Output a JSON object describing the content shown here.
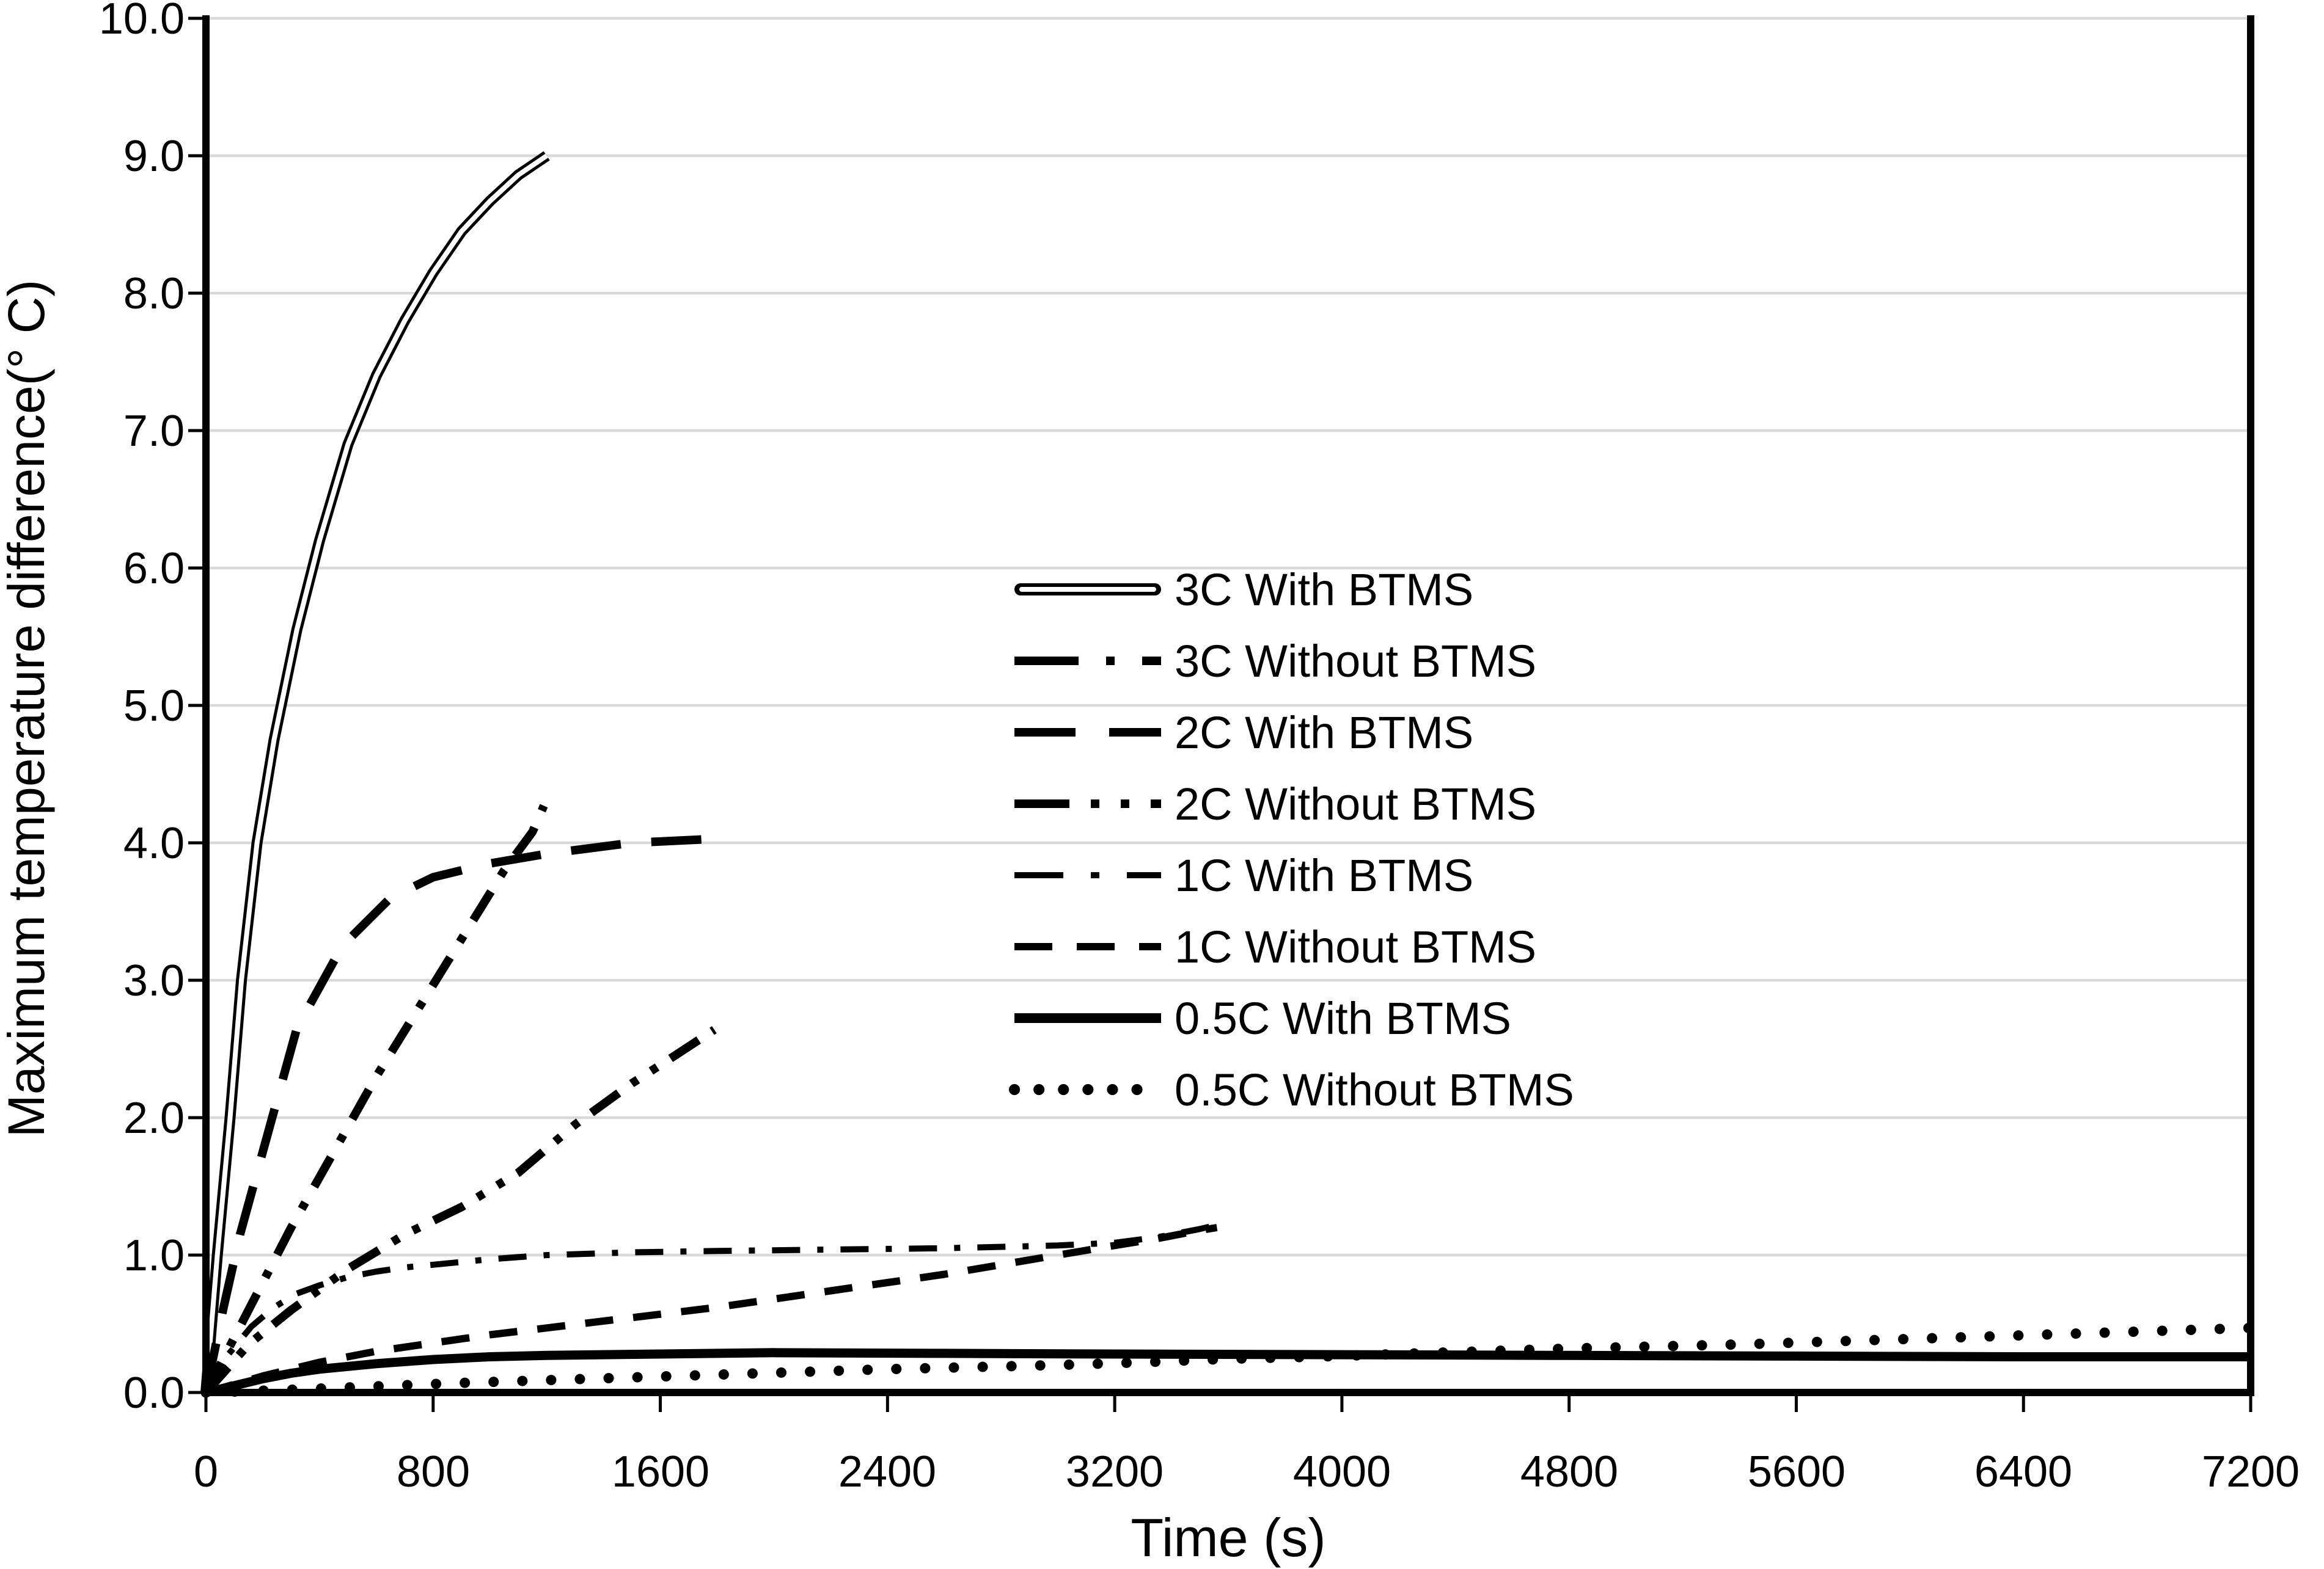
{
  "colors": {
    "line": "#000000",
    "grid": "#d9d9d9",
    "background": "#ffffff"
  },
  "chart_data": {
    "type": "line",
    "title": "",
    "xlabel": "Time (s)",
    "ylabel": "Maximum  temperature difference(° C)",
    "xlim": [
      0,
      7200
    ],
    "ylim": [
      0,
      10
    ],
    "grid": "horizontal gridlines only",
    "legend_position": "inside plot, center-right, no border",
    "x_ticks": [
      0,
      800,
      1600,
      2400,
      3200,
      4000,
      4800,
      5600,
      6400,
      7200
    ],
    "x_tick_labels": [
      "0",
      "800",
      "1600",
      "2400",
      "3200",
      "4000",
      "4800",
      "5600",
      "6400",
      "7200"
    ],
    "y_tick_labels": [
      "0.0",
      "1.0",
      "2.0",
      "3.0",
      "4.0",
      "5.0",
      "6.0",
      "7.0",
      "8.0",
      "9.0",
      "10.0"
    ],
    "series": [
      {
        "id": "3c-with-btms",
        "name": "3C With BTMS",
        "line_style": "double-solid",
        "points": [
          [
            0,
            0
          ],
          [
            40,
            1.0
          ],
          [
            85,
            2.0
          ],
          [
            125,
            3.0
          ],
          [
            180,
            4.0
          ],
          [
            240,
            4.75
          ],
          [
            320,
            5.55
          ],
          [
            400,
            6.2
          ],
          [
            500,
            6.9
          ],
          [
            600,
            7.4
          ],
          [
            700,
            7.8
          ],
          [
            800,
            8.15
          ],
          [
            900,
            8.45
          ],
          [
            1000,
            8.67
          ],
          [
            1100,
            8.86
          ],
          [
            1200,
            9.0
          ]
        ]
      },
      {
        "id": "3c-without-btms",
        "name": "3C Without BTMS",
        "line_style": "dash-dot-bold",
        "points": [
          [
            0,
            0
          ],
          [
            150,
            0.6
          ],
          [
            300,
            1.2
          ],
          [
            450,
            1.75
          ],
          [
            600,
            2.3
          ],
          [
            750,
            2.8
          ],
          [
            900,
            3.3
          ],
          [
            1050,
            3.8
          ],
          [
            1150,
            4.08
          ],
          [
            1190,
            4.27
          ]
        ]
      },
      {
        "id": "2c-with-btms",
        "name": "2C With BTMS",
        "line_style": "long-dash",
        "points": [
          [
            0,
            0
          ],
          [
            60,
            0.6
          ],
          [
            120,
            1.15
          ],
          [
            200,
            1.75
          ],
          [
            320,
            2.65
          ],
          [
            480,
            3.25
          ],
          [
            650,
            3.6
          ],
          [
            800,
            3.75
          ],
          [
            1000,
            3.85
          ],
          [
            1200,
            3.92
          ],
          [
            1500,
            4.0
          ],
          [
            1800,
            4.03
          ]
        ]
      },
      {
        "id": "2c-without-btms",
        "name": "2C Without BTMS",
        "line_style": "dash-dot-dot",
        "points": [
          [
            0,
            0
          ],
          [
            150,
            0.35
          ],
          [
            300,
            0.6
          ],
          [
            500,
            0.9
          ],
          [
            700,
            1.15
          ],
          [
            900,
            1.35
          ],
          [
            1100,
            1.6
          ],
          [
            1300,
            1.95
          ],
          [
            1500,
            2.25
          ],
          [
            1650,
            2.45
          ],
          [
            1790,
            2.64
          ]
        ]
      },
      {
        "id": "1c-with-btms",
        "name": "1C With BTMS",
        "line_style": "dash-dot",
        "points": [
          [
            0,
            0
          ],
          [
            80,
            0.28
          ],
          [
            160,
            0.48
          ],
          [
            240,
            0.62
          ],
          [
            320,
            0.72
          ],
          [
            400,
            0.78
          ],
          [
            500,
            0.84
          ],
          [
            600,
            0.88
          ],
          [
            700,
            0.91
          ],
          [
            800,
            0.93
          ],
          [
            1000,
            0.97
          ],
          [
            1200,
            1.0
          ],
          [
            1500,
            1.02
          ],
          [
            1800,
            1.03
          ],
          [
            2200,
            1.04
          ],
          [
            2600,
            1.05
          ],
          [
            3000,
            1.07
          ],
          [
            3200,
            1.09
          ],
          [
            3350,
            1.13
          ],
          [
            3500,
            1.19
          ],
          [
            3560,
            1.22
          ]
        ]
      },
      {
        "id": "1c-without-btms",
        "name": "1C Without BTMS",
        "line_style": "dash",
        "points": [
          [
            0,
            0
          ],
          [
            200,
            0.12
          ],
          [
            400,
            0.22
          ],
          [
            600,
            0.3
          ],
          [
            800,
            0.36
          ],
          [
            1000,
            0.42
          ],
          [
            1200,
            0.47
          ],
          [
            1400,
            0.52
          ],
          [
            1600,
            0.57
          ],
          [
            1800,
            0.62
          ],
          [
            2000,
            0.68
          ],
          [
            2200,
            0.74
          ],
          [
            2400,
            0.8
          ],
          [
            2600,
            0.86
          ],
          [
            2800,
            0.93
          ],
          [
            3000,
            1.0
          ],
          [
            3200,
            1.07
          ],
          [
            3350,
            1.12
          ],
          [
            3500,
            1.18
          ],
          [
            3560,
            1.2
          ]
        ]
      },
      {
        "id": "05c-with-btms",
        "name": "0.5C With BTMS",
        "line_style": "solid-bold",
        "points": [
          [
            0,
            0
          ],
          [
            100,
            0.05
          ],
          [
            200,
            0.1
          ],
          [
            300,
            0.14
          ],
          [
            400,
            0.17
          ],
          [
            500,
            0.19
          ],
          [
            600,
            0.21
          ],
          [
            800,
            0.24
          ],
          [
            1000,
            0.26
          ],
          [
            1200,
            0.27
          ],
          [
            1600,
            0.28
          ],
          [
            2000,
            0.29
          ],
          [
            2600,
            0.285
          ],
          [
            3200,
            0.28
          ],
          [
            4000,
            0.275
          ],
          [
            4800,
            0.27
          ],
          [
            5600,
            0.265
          ],
          [
            6400,
            0.26
          ],
          [
            7200,
            0.26
          ]
        ]
      },
      {
        "id": "05c-without-btms",
        "name": "0.5C Without BTMS",
        "line_style": "dotted",
        "points": [
          [
            0,
            0
          ],
          [
            300,
            0.02
          ],
          [
            600,
            0.045
          ],
          [
            900,
            0.07
          ],
          [
            1200,
            0.09
          ],
          [
            1500,
            0.11
          ],
          [
            1800,
            0.13
          ],
          [
            2100,
            0.15
          ],
          [
            2400,
            0.17
          ],
          [
            2700,
            0.185
          ],
          [
            3000,
            0.2
          ],
          [
            3300,
            0.22
          ],
          [
            3600,
            0.245
          ],
          [
            3900,
            0.26
          ],
          [
            4200,
            0.28
          ],
          [
            4500,
            0.3
          ],
          [
            4800,
            0.32
          ],
          [
            5100,
            0.335
          ],
          [
            5400,
            0.35
          ],
          [
            5700,
            0.37
          ],
          [
            6000,
            0.39
          ],
          [
            6300,
            0.41
          ],
          [
            6600,
            0.43
          ],
          [
            6900,
            0.45
          ],
          [
            7200,
            0.47
          ]
        ]
      }
    ]
  }
}
